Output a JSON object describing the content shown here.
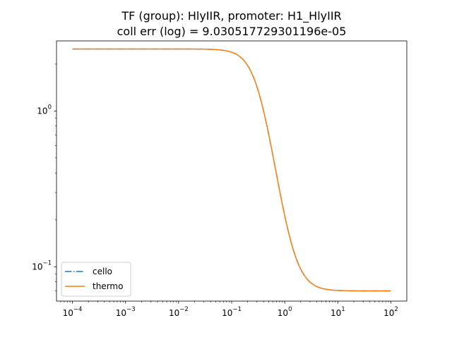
{
  "chart_data": {
    "type": "line",
    "title_line1": "TF (group): HlyIIR, promoter: H1_HlyIIR",
    "title_line2": "coll err (log) = 9.030517729301196e-05",
    "xlabel": "",
    "ylabel": "",
    "xscale": "log",
    "yscale": "log",
    "xlim": [
      5.01e-05,
      199.5
    ],
    "ylim": [
      0.0602,
      2.818
    ],
    "grid": false,
    "legend_position": "lower-left",
    "x_major_ticks": [
      {
        "value": 0.0001,
        "base": "10",
        "exp": "−4"
      },
      {
        "value": 0.001,
        "base": "10",
        "exp": "−3"
      },
      {
        "value": 0.01,
        "base": "10",
        "exp": "−2"
      },
      {
        "value": 0.1,
        "base": "10",
        "exp": "−1"
      },
      {
        "value": 1,
        "base": "10",
        "exp": "0"
      },
      {
        "value": 10,
        "base": "10",
        "exp": "1"
      },
      {
        "value": 100,
        "base": "10",
        "exp": "2"
      }
    ],
    "y_major_ticks": [
      {
        "value": 0.1,
        "base": "10",
        "exp": "−1"
      },
      {
        "value": 1,
        "base": "10",
        "exp": "0"
      }
    ],
    "model": {
      "ymin": 0.07,
      "ymax": 2.5,
      "K": 0.33,
      "n": 2.5,
      "x_start": 0.0001,
      "x_end": 100
    },
    "series": [
      {
        "name": "cello",
        "color": "#1f77b4",
        "style": "dashdot"
      },
      {
        "name": "thermo",
        "color": "#ff7f0e",
        "style": "solid"
      }
    ]
  }
}
